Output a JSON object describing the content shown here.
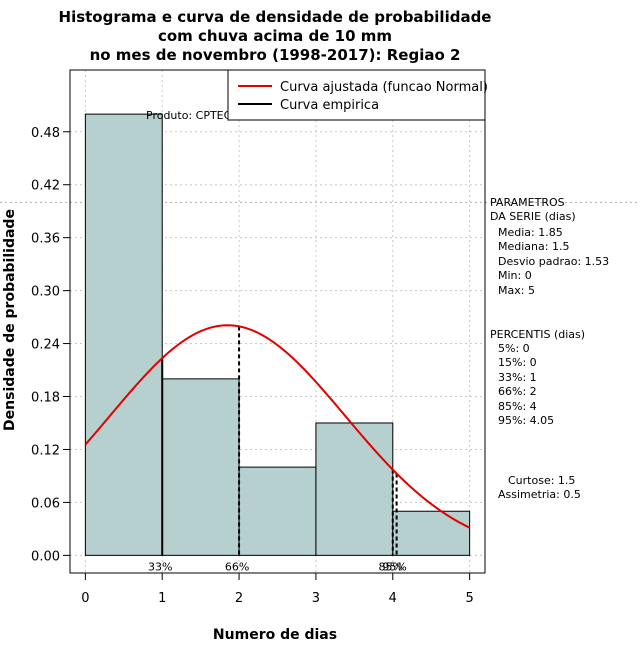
{
  "chart_data": {
    "type": "histogram",
    "title": [
      "Histograma e curva de densidade de probabilidade",
      "com chuva acima de 10 mm",
      "no mes de novembro (1998-2017): Regiao 2"
    ],
    "xlabel": "Numero de dias",
    "ylabel": "Densidade de probabilidade",
    "xlim": [
      -0.2,
      5.2
    ],
    "ylim": [
      -0.02,
      0.55
    ],
    "x_ticks": [
      0,
      1,
      2,
      3,
      4,
      5
    ],
    "y_ticks": [
      0.0,
      0.06,
      0.12,
      0.18,
      0.24,
      0.3,
      0.36,
      0.42,
      0.48
    ],
    "y_tick_labels": [
      "0.00",
      "0.06",
      "0.12",
      "0.18",
      "0.24",
      "0.30",
      "0.36",
      "0.42",
      "0.48"
    ],
    "bins": [
      {
        "start": 0,
        "end": 1,
        "density": 0.5
      },
      {
        "start": 1,
        "end": 2,
        "density": 0.2
      },
      {
        "start": 2,
        "end": 3,
        "density": 0.1
      },
      {
        "start": 3,
        "end": 4,
        "density": 0.15
      },
      {
        "start": 4,
        "end": 5,
        "density": 0.05
      }
    ],
    "bar_color": "#b6cfcf",
    "grid": true,
    "fitted_curve": {
      "name": "Curva ajustada (funcao Normal)",
      "mean": 1.85,
      "sd": 1.53,
      "color": "#e00000"
    },
    "empirical_legend": {
      "name": "Curva empirica",
      "color": "#000000"
    },
    "horizontal_ref_line": 0.4,
    "percentile_markers": [
      {
        "x": 1,
        "label": "33%",
        "style": "solid"
      },
      {
        "x": 2,
        "label": "66%",
        "style": "dashed"
      },
      {
        "x": 4,
        "label": "85%",
        "style": "dashed"
      },
      {
        "x": 4.05,
        "label": "95%",
        "style": "dashed"
      }
    ],
    "source_note": "Produto: CPTEC/INPE",
    "legend_position": "top-right"
  },
  "side_panel": {
    "params_title": "PARAMETROS",
    "params_subtitle": "DA SERIE (dias)",
    "params": [
      "Media: 1.85",
      "Mediana: 1.5",
      "Desvio padrao: 1.53",
      "Min: 0",
      "Max: 5"
    ],
    "percentis_title": "PERCENTIS (dias)",
    "percentis": [
      "5%: 0",
      "15%: 0",
      "33%: 1",
      "66%: 2",
      "85%: 4",
      "95%: 4.05"
    ],
    "curtose": "Curtose: 1.5",
    "assimetria": "Assimetria: 0.5"
  }
}
